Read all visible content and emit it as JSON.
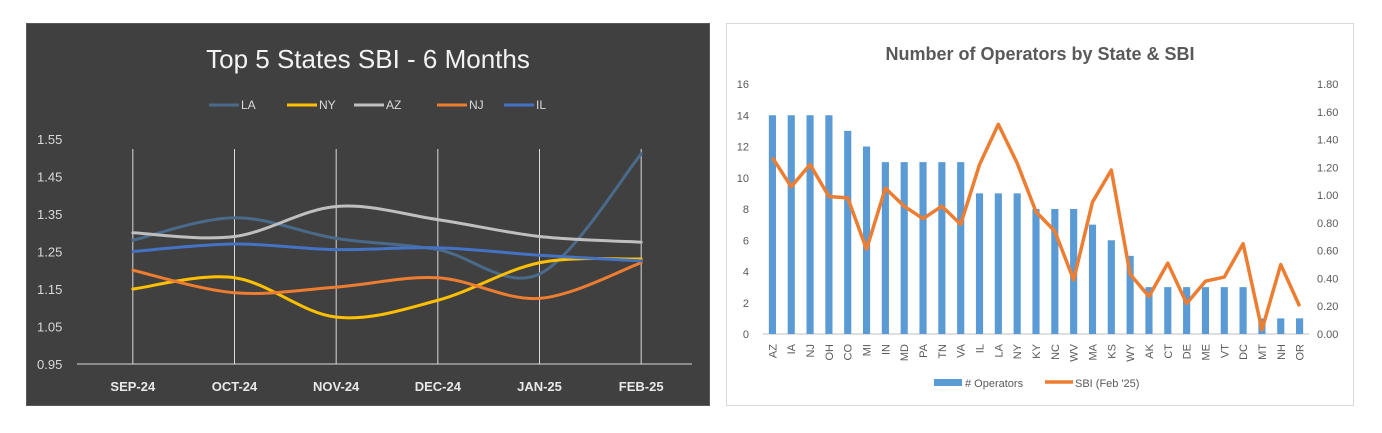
{
  "chart_data": [
    {
      "type": "line",
      "title": "Top 5 States SBI - 6 Months",
      "categories": [
        "SEP-24",
        "OCT-24",
        "NOV-24",
        "DEC-24",
        "JAN-25",
        "FEB-25"
      ],
      "series": [
        {
          "name": "LA",
          "color": "#4a6a8a",
          "values": [
            1.28,
            1.34,
            1.285,
            1.255,
            1.19,
            1.51
          ]
        },
        {
          "name": "NY",
          "color": "#ffc000",
          "values": [
            1.15,
            1.18,
            1.075,
            1.12,
            1.22,
            1.23
          ]
        },
        {
          "name": "AZ",
          "color": "#bfbfbf",
          "values": [
            1.3,
            1.29,
            1.37,
            1.335,
            1.29,
            1.275
          ]
        },
        {
          "name": "NJ",
          "color": "#ed7d31",
          "values": [
            1.2,
            1.14,
            1.155,
            1.18,
            1.125,
            1.22
          ]
        },
        {
          "name": "IL",
          "color": "#4472c4",
          "values": [
            1.25,
            1.27,
            1.255,
            1.26,
            1.24,
            1.225
          ]
        }
      ],
      "ylim": [
        0.95,
        1.55
      ],
      "yticks": [
        "0.95",
        "1.05",
        "1.15",
        "1.25",
        "1.35",
        "1.45",
        "1.55"
      ],
      "legend": "top",
      "grid": "vertical"
    },
    {
      "type": "bar",
      "title": "Number of Operators by State & SBI",
      "categories": [
        "AZ",
        "IA",
        "NJ",
        "OH",
        "CO",
        "MI",
        "IN",
        "MD",
        "PA",
        "TN",
        "VA",
        "IL",
        "LA",
        "NY",
        "KY",
        "NC",
        "WV",
        "MA",
        "KS",
        "WY",
        "AK",
        "CT",
        "DE",
        "ME",
        "VT",
        "DC",
        "MT",
        "NH",
        "OR"
      ],
      "series": [
        {
          "name": "# Operators",
          "color": "#5b9bd5",
          "axis": "left",
          "values": [
            14,
            14,
            14,
            14,
            13,
            12,
            11,
            11,
            11,
            11,
            11,
            9,
            9,
            9,
            8,
            8,
            8,
            7,
            6,
            5,
            3,
            3,
            3,
            3,
            3,
            3,
            1,
            1,
            1
          ]
        },
        {
          "name": "SBI (Feb '25)",
          "color": "#ed7d31",
          "axis": "right",
          "type": "line",
          "values": [
            1.27,
            1.06,
            1.22,
            0.99,
            0.98,
            0.61,
            1.05,
            0.92,
            0.83,
            0.92,
            0.79,
            1.22,
            1.51,
            1.23,
            0.88,
            0.74,
            0.39,
            0.95,
            1.18,
            0.43,
            0.27,
            0.51,
            0.22,
            0.38,
            0.41,
            0.65,
            0.03,
            0.5,
            0.2
          ]
        }
      ],
      "ylim_left": [
        0,
        16
      ],
      "ylim_right": [
        0,
        1.8
      ],
      "yticks_left": [
        "0",
        "2",
        "4",
        "6",
        "8",
        "10",
        "12",
        "14",
        "16"
      ],
      "yticks_right": [
        "0.00",
        "0.20",
        "0.40",
        "0.60",
        "0.80",
        "1.00",
        "1.20",
        "1.40",
        "1.60",
        "1.80"
      ],
      "legend": "bottom"
    }
  ]
}
